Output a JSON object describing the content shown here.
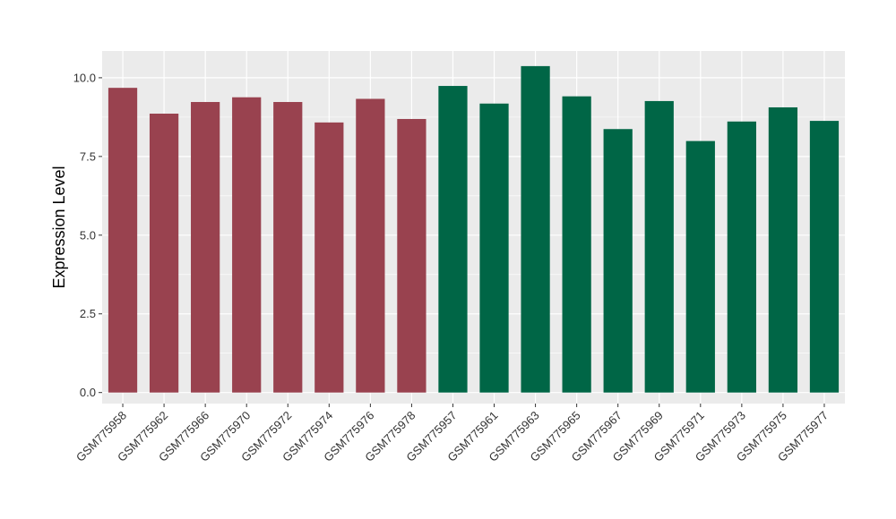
{
  "chart_data": {
    "type": "bar",
    "title": "",
    "xlabel": "",
    "ylabel": "Expression Level",
    "ylim": [
      -0.35,
      10.85
    ],
    "yticks": [
      0.0,
      2.5,
      5.0,
      7.5,
      10.0
    ],
    "ytick_labels": [
      "0.0",
      "2.5",
      "5.0",
      "7.5",
      "10.0"
    ],
    "grid": true,
    "legend": "none",
    "background_color": "#EBEBEB",
    "grid_color": "#FFFFFF",
    "categories": [
      "GSM775958",
      "GSM775962",
      "GSM775966",
      "GSM775970",
      "GSM775972",
      "GSM775974",
      "GSM775976",
      "GSM775978",
      "GSM775957",
      "GSM775961",
      "GSM775963",
      "GSM775965",
      "GSM775967",
      "GSM775969",
      "GSM775971",
      "GSM775973",
      "GSM775975",
      "GSM775977"
    ],
    "values": [
      9.68,
      8.86,
      9.23,
      9.38,
      9.23,
      8.58,
      9.33,
      8.69,
      9.74,
      9.18,
      10.37,
      9.41,
      8.37,
      9.26,
      7.99,
      8.61,
      9.06,
      8.63
    ],
    "colors": [
      "#99424F",
      "#99424F",
      "#99424F",
      "#99424F",
      "#99424F",
      "#99424F",
      "#99424F",
      "#99424F",
      "#006646",
      "#006646",
      "#006646",
      "#006646",
      "#006646",
      "#006646",
      "#006646",
      "#006646",
      "#006646",
      "#006646"
    ]
  }
}
